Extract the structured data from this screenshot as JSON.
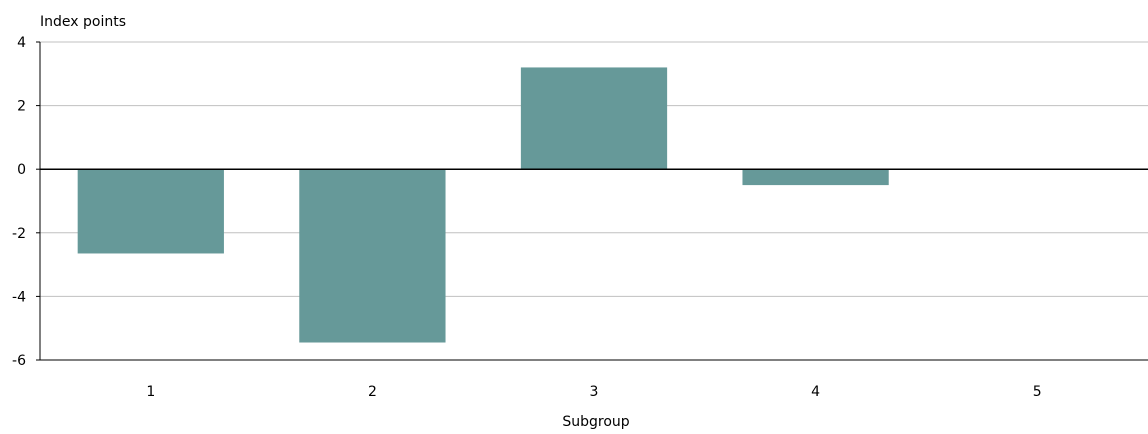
{
  "chart_data": {
    "type": "bar",
    "title": "",
    "ylabel": "Index points",
    "xlabel": "Subgroup",
    "categories": [
      "1",
      "2",
      "3",
      "4",
      "5"
    ],
    "series": [
      {
        "values": [
          -2.65,
          -5.45,
          3.2,
          -0.5,
          0
        ]
      }
    ],
    "ylim": [
      -6,
      4
    ],
    "yticks": [
      4,
      2,
      0,
      -2,
      -4,
      -6
    ],
    "grid": true,
    "colors": {
      "bar": "#669999",
      "grid": "#c0c0c0",
      "zero_line": "#000000",
      "axis": "#000000"
    }
  }
}
